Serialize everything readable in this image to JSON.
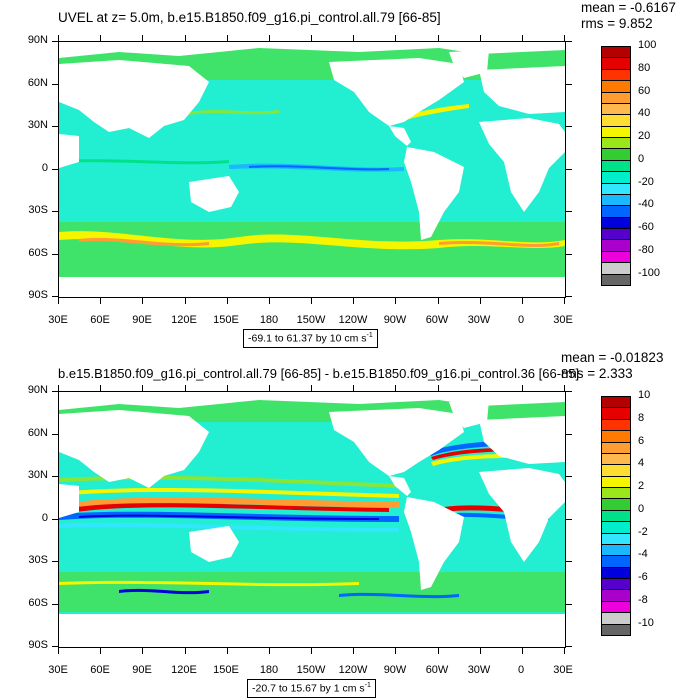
{
  "top_panel": {
    "title": "UVEL at z=   5.0m, b.e15.B1850.f09_g16.pi_control.all.79 [66-85]",
    "mean": "mean = -0.6167",
    "rms": "rms = 9.852",
    "range_text": "-69.1 to 61.37 by 10 cm s",
    "range_unit_exp": "-1",
    "lat_labels": [
      "90N",
      "60N",
      "30N",
      "0",
      "30S",
      "60S",
      "90S"
    ],
    "lon_labels": [
      "30E",
      "60E",
      "90E",
      "120E",
      "150E",
      "180",
      "150W",
      "120W",
      "90W",
      "60W",
      "30W",
      "0",
      "30E"
    ],
    "colorbar_labels": [
      "100",
      "80",
      "60",
      "40",
      "20",
      "0",
      "-20",
      "-40",
      "-60",
      "-80",
      "-100"
    ],
    "colorbar_colors": [
      "#b30000",
      "#e60000",
      "#ff3300",
      "#ff7a00",
      "#ff9d33",
      "#ffb84d",
      "#ffdd33",
      "#f5f500",
      "#9be61a",
      "#33cc33",
      "#00e28a",
      "#00eecc",
      "#33e6ff",
      "#1ab8ff",
      "#0066ff",
      "#0000dd",
      "#5500cc",
      "#aa00cc",
      "#ee00dd",
      "#cccccc",
      "#666666"
    ]
  },
  "bottom_panel": {
    "title": "b.e15.B1850.f09_g16.pi_control.all.79 [66-85] - b.e15.B1850.f09_g16.pi_control.36 [66-85]",
    "mean": "mean = -0.01823",
    "rms": "rms = 2.333",
    "range_text": "-20.7 to 15.67 by 1 cm s",
    "range_unit_exp": "-1",
    "lat_labels": [
      "90N",
      "60N",
      "30N",
      "0",
      "30S",
      "60S",
      "90S"
    ],
    "lon_labels": [
      "30E",
      "60E",
      "90E",
      "120E",
      "150E",
      "180",
      "150W",
      "120W",
      "90W",
      "60W",
      "30W",
      "0",
      "30E"
    ],
    "colorbar_labels": [
      "10",
      "8",
      "6",
      "4",
      "2",
      "0",
      "-2",
      "-4",
      "-6",
      "-8",
      "-10"
    ],
    "colorbar_colors": [
      "#b30000",
      "#e60000",
      "#ff3300",
      "#ff7a00",
      "#ff9d33",
      "#ffb84d",
      "#ffdd33",
      "#f5f500",
      "#9be61a",
      "#33cc33",
      "#00e28a",
      "#00eecc",
      "#33e6ff",
      "#1ab8ff",
      "#0066ff",
      "#0000dd",
      "#5500cc",
      "#aa00cc",
      "#ee00dd",
      "#cccccc",
      "#666666"
    ]
  },
  "colors": {
    "ocean_base": "#22eed2",
    "ocean_green": "#3fe36a",
    "ocean_lightgreen": "#86e63a",
    "jet_yellow": "#f5f500",
    "jet_orange": "#ff9d33",
    "jet_red": "#e60000",
    "jet_blue": "#0066ff",
    "jet_navy": "#0000dd",
    "jet_cyan": "#33e6ff",
    "land": "#ffffff"
  }
}
